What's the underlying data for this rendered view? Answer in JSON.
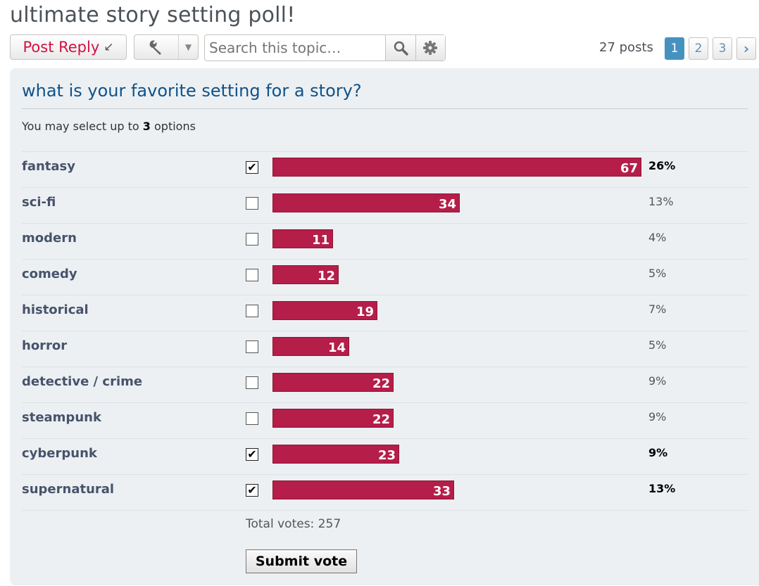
{
  "topic": {
    "title": "ultimate story setting poll!"
  },
  "toolbar": {
    "post_reply_label": "Post Reply",
    "search_placeholder": "Search this topic…",
    "posts_count": "27 posts",
    "pages": [
      "1",
      "2",
      "3"
    ],
    "current_page": "1",
    "next_icon": "chevron-right-icon",
    "icons": [
      "reply-arrow-icon",
      "wrench-icon",
      "caret-down-icon",
      "magnifier-icon",
      "gear-icon"
    ]
  },
  "poll": {
    "question": "what is your favorite setting for a story?",
    "info_prefix": "You may select up to",
    "max_options": "3",
    "info_suffix": "options",
    "options": [
      {
        "label": "fantasy",
        "votes": 67,
        "votes_text": "67",
        "percent": "26%",
        "checked": true
      },
      {
        "label": "sci-fi",
        "votes": 34,
        "votes_text": "34",
        "percent": "13%",
        "checked": false
      },
      {
        "label": "modern",
        "votes": 11,
        "votes_text": "11",
        "percent": "4%",
        "checked": false
      },
      {
        "label": "comedy",
        "votes": 12,
        "votes_text": "12",
        "percent": "5%",
        "checked": false
      },
      {
        "label": "historical",
        "votes": 19,
        "votes_text": "19",
        "percent": "7%",
        "checked": false
      },
      {
        "label": "horror",
        "votes": 14,
        "votes_text": "14",
        "percent": "5%",
        "checked": false
      },
      {
        "label": "detective / crime",
        "votes": 22,
        "votes_text": "22",
        "percent": "9%",
        "checked": false
      },
      {
        "label": "steampunk",
        "votes": 22,
        "votes_text": "22",
        "percent": "9%",
        "checked": false
      },
      {
        "label": "cyberpunk",
        "votes": 23,
        "votes_text": "23",
        "percent": "9%",
        "checked": true
      },
      {
        "label": "supernatural",
        "votes": 33,
        "votes_text": "33",
        "percent": "13%",
        "checked": true
      }
    ],
    "total_votes": "Total votes: 257",
    "submit_label": "Submit vote",
    "bar_color": "#b51e48"
  }
}
